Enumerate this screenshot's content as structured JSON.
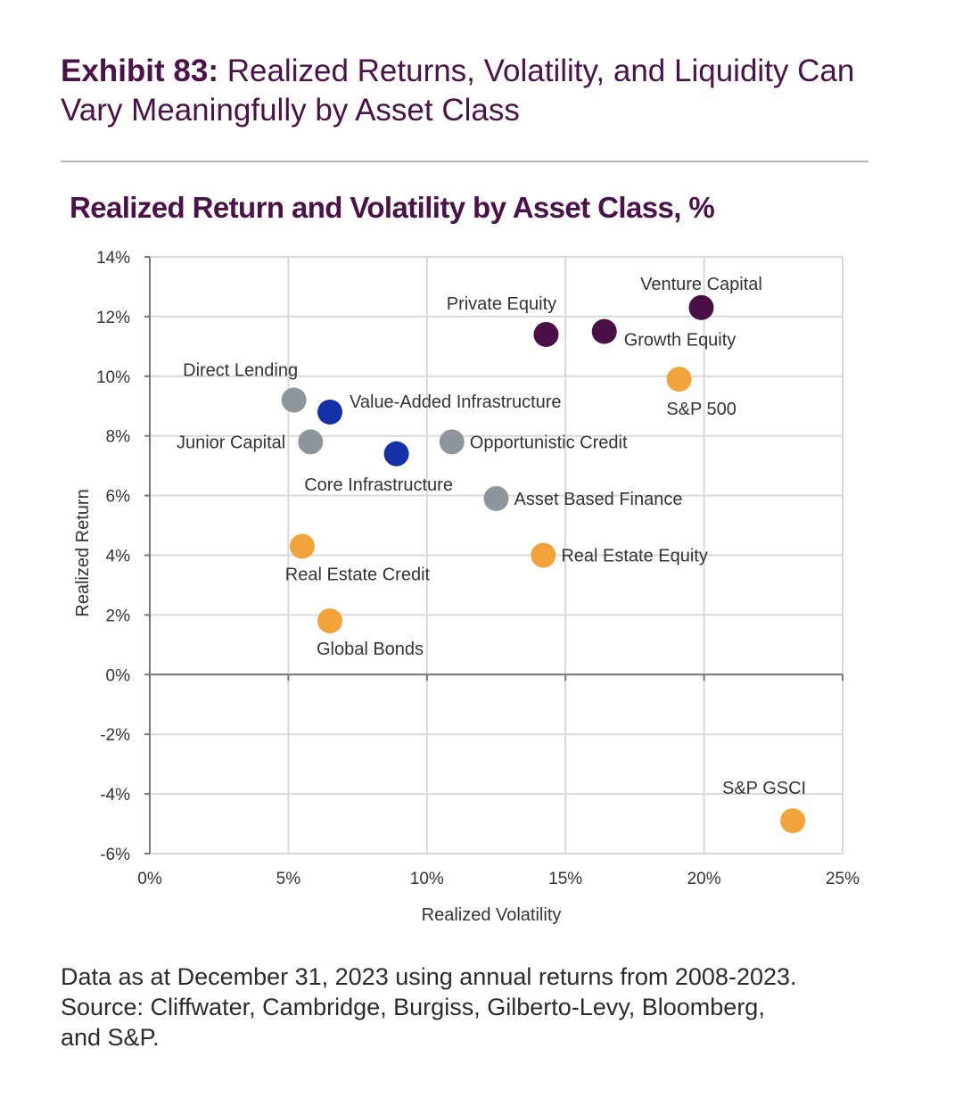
{
  "header": {
    "exhibit_label": "Exhibit 83:",
    "exhibit_title": "Realized Returns, Volatility, and Liquidity Can Vary Meaningfully by Asset Class"
  },
  "chart_data": {
    "type": "scatter",
    "title": "Realized Return and Volatility by Asset Class, %",
    "xlabel": "Realized Volatility",
    "ylabel": "Realized Return",
    "xlim": [
      0,
      25
    ],
    "ylim": [
      -6,
      14
    ],
    "x_ticks": [
      0,
      5,
      10,
      15,
      20,
      25
    ],
    "y_ticks": [
      -6,
      -4,
      -2,
      0,
      2,
      4,
      6,
      8,
      10,
      12,
      14
    ],
    "x_tick_labels": [
      "0%",
      "5%",
      "10%",
      "15%",
      "20%",
      "25%"
    ],
    "y_tick_labels": [
      "-6%",
      "-4%",
      "-2%",
      "0%",
      "2%",
      "4%",
      "6%",
      "8%",
      "10%",
      "12%",
      "14%"
    ],
    "grid": true,
    "colors": {
      "private_equity_group": "#4a0f45",
      "infrastructure_group": "#1531a8",
      "credit_group": "#8e969c",
      "public_real_estate_group": "#f2a33a"
    },
    "points": [
      {
        "label": "Venture Capital",
        "x": 19.9,
        "y": 12.3,
        "group": "private_equity_group",
        "label_pos": "above"
      },
      {
        "label": "Private Equity",
        "x": 14.3,
        "y": 11.4,
        "group": "private_equity_group",
        "label_pos": "above-left"
      },
      {
        "label": "Growth Equity",
        "x": 16.4,
        "y": 11.5,
        "group": "private_equity_group",
        "label_pos": "below-right"
      },
      {
        "label": "S&P 500",
        "x": 19.1,
        "y": 9.9,
        "group": "public_real_estate_group",
        "label_pos": "below"
      },
      {
        "label": "Direct Lending",
        "x": 5.2,
        "y": 9.2,
        "group": "credit_group",
        "label_pos": "above-left"
      },
      {
        "label": "Value-Added Infrastructure",
        "x": 6.5,
        "y": 8.8,
        "group": "infrastructure_group",
        "label_pos": "above-right"
      },
      {
        "label": "Junior Capital",
        "x": 5.8,
        "y": 7.8,
        "group": "credit_group",
        "label_pos": "left"
      },
      {
        "label": "Core Infrastructure",
        "x": 8.9,
        "y": 7.4,
        "group": "infrastructure_group",
        "label_pos": "below-left"
      },
      {
        "label": "Opportunistic Credit",
        "x": 10.9,
        "y": 7.8,
        "group": "credit_group",
        "label_pos": "right"
      },
      {
        "label": "Asset Based Finance",
        "x": 12.5,
        "y": 5.9,
        "group": "credit_group",
        "label_pos": "right"
      },
      {
        "label": "Real Estate Credit",
        "x": 5.5,
        "y": 4.3,
        "group": "public_real_estate_group",
        "label_pos": "below-right"
      },
      {
        "label": "Real Estate Equity",
        "x": 14.2,
        "y": 4.0,
        "group": "public_real_estate_group",
        "label_pos": "right"
      },
      {
        "label": "Global Bonds",
        "x": 6.5,
        "y": 1.8,
        "group": "public_real_estate_group",
        "label_pos": "below-right"
      },
      {
        "label": "S&P GSCI",
        "x": 23.2,
        "y": -4.9,
        "group": "public_real_estate_group",
        "label_pos": "above-left"
      }
    ]
  },
  "footnote": {
    "line1": "Data as at December 31, 2023 using annual returns from 2008-2023.",
    "line2": "Source: Cliffwater, Cambridge, Burgiss, Gilberto-Levy, Bloomberg,",
    "line3": "and S&P."
  }
}
